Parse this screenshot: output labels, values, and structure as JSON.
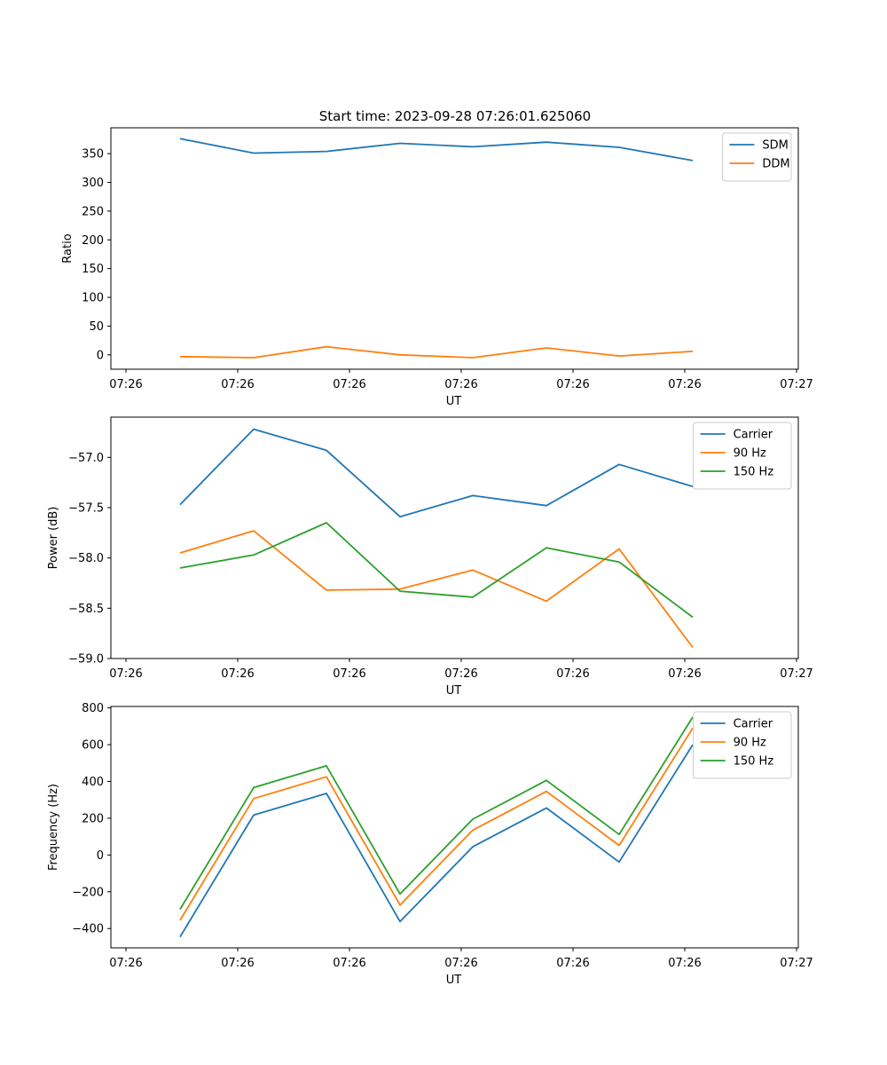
{
  "figure": {
    "title": "Start time: 2023-09-28 07:26:01.625060"
  },
  "chart_data": [
    {
      "type": "line",
      "xlabel": "UT",
      "ylabel": "Ratio",
      "x_tick_labels": [
        "07:26",
        "07:26",
        "07:26",
        "07:26",
        "07:26",
        "07:26",
        "07:26",
        "07:27"
      ],
      "y_ticks": [
        0,
        50,
        100,
        150,
        200,
        250,
        300,
        350
      ],
      "y_tick_labels": [
        "0",
        "50",
        "100",
        "150",
        "200",
        "250",
        "300",
        "350"
      ],
      "ylim": [
        -25,
        395
      ],
      "x_index": [
        0,
        1,
        2,
        3,
        4,
        5,
        6,
        7
      ],
      "series": [
        {
          "name": "SDM",
          "color": "#1f77b4",
          "values": [
            376,
            351,
            354,
            368,
            362,
            370,
            361,
            338
          ]
        },
        {
          "name": "DDM",
          "color": "#ff7f0e",
          "values": [
            -3,
            -5,
            14,
            0,
            -5,
            12,
            -2,
            6
          ]
        }
      ],
      "legend": "upper right"
    },
    {
      "type": "line",
      "xlabel": "UT",
      "ylabel": "Power (dB)",
      "x_tick_labels": [
        "07:26",
        "07:26",
        "07:26",
        "07:26",
        "07:26",
        "07:26",
        "07:26",
        "07:27"
      ],
      "y_ticks": [
        -59.0,
        -58.5,
        -58.0,
        -57.5,
        -57.0
      ],
      "y_tick_labels": [
        "−59.0",
        "−58.5",
        "−58.0",
        "−57.5",
        "−57.0"
      ],
      "ylim": [
        -59.0,
        -56.6
      ],
      "x_index": [
        0,
        1,
        2,
        3,
        4,
        5,
        6,
        7
      ],
      "series": [
        {
          "name": "Carrier",
          "color": "#1f77b4",
          "values": [
            -57.47,
            -56.72,
            -56.93,
            -57.59,
            -57.38,
            -57.48,
            -57.07,
            -57.29
          ]
        },
        {
          "name": "90 Hz",
          "color": "#ff7f0e",
          "values": [
            -57.95,
            -57.73,
            -58.32,
            -58.31,
            -58.12,
            -58.43,
            -57.91,
            -58.89
          ]
        },
        {
          "name": "150 Hz",
          "color": "#2ca02c",
          "values": [
            -58.1,
            -57.97,
            -57.65,
            -58.33,
            -58.39,
            -57.9,
            -58.04,
            -58.59
          ]
        }
      ],
      "legend": "upper right"
    },
    {
      "type": "line",
      "xlabel": "UT",
      "ylabel": "Frequency (Hz)",
      "x_tick_labels": [
        "07:26",
        "07:26",
        "07:26",
        "07:26",
        "07:26",
        "07:26",
        "07:26",
        "07:27"
      ],
      "y_ticks": [
        -400,
        -200,
        0,
        200,
        400,
        600,
        800
      ],
      "y_tick_labels": [
        "−400",
        "−200",
        "0",
        "200",
        "400",
        "600",
        "800"
      ],
      "ylim": [
        -505,
        808
      ],
      "x_index": [
        0,
        1,
        2,
        3,
        4,
        5,
        6,
        7
      ],
      "series": [
        {
          "name": "Carrier",
          "color": "#1f77b4",
          "values": [
            -445,
            217,
            335,
            -362,
            45,
            256,
            -38,
            600
          ]
        },
        {
          "name": "90 Hz",
          "color": "#ff7f0e",
          "values": [
            -355,
            307,
            425,
            -272,
            135,
            346,
            52,
            690
          ]
        },
        {
          "name": "150 Hz",
          "color": "#2ca02c",
          "values": [
            -295,
            367,
            485,
            -212,
            195,
            406,
            112,
            750
          ]
        }
      ],
      "legend": "upper right"
    }
  ]
}
